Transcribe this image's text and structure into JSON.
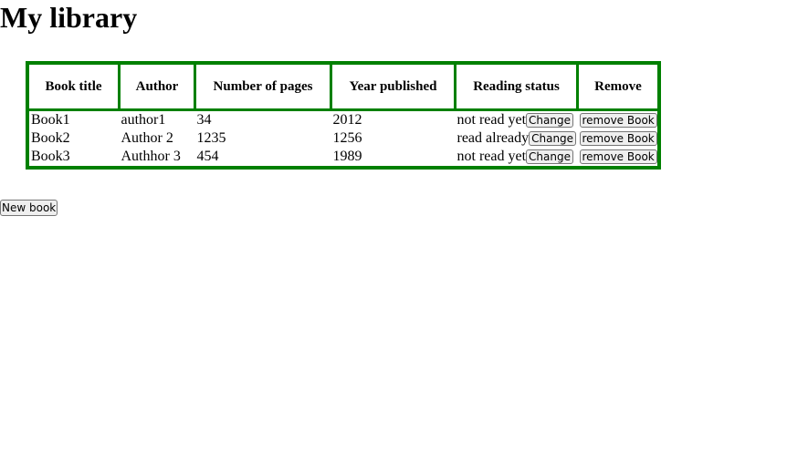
{
  "page": {
    "title": "My library"
  },
  "table": {
    "headers": [
      "Book title",
      "Author",
      "Number of pages",
      "Year published",
      "Reading status",
      "Remove"
    ],
    "rows": [
      {
        "title": "Book1",
        "author": "author1",
        "pages": "34",
        "year": "2012",
        "status": "not read yet",
        "change_label": "Change",
        "remove_label": "remove Book"
      },
      {
        "title": "Book2",
        "author": "Author 2",
        "pages": "1235",
        "year": "1256",
        "status": "read already",
        "change_label": "Change",
        "remove_label": "remove Book"
      },
      {
        "title": "Book3",
        "author": "Authhor 3",
        "pages": "454",
        "year": "1989",
        "status": "not read yet",
        "change_label": "Change",
        "remove_label": "remove Book"
      }
    ]
  },
  "actions": {
    "new_book_label": "New book"
  },
  "colors": {
    "border": "#008000",
    "button_bg": "#efefef"
  }
}
